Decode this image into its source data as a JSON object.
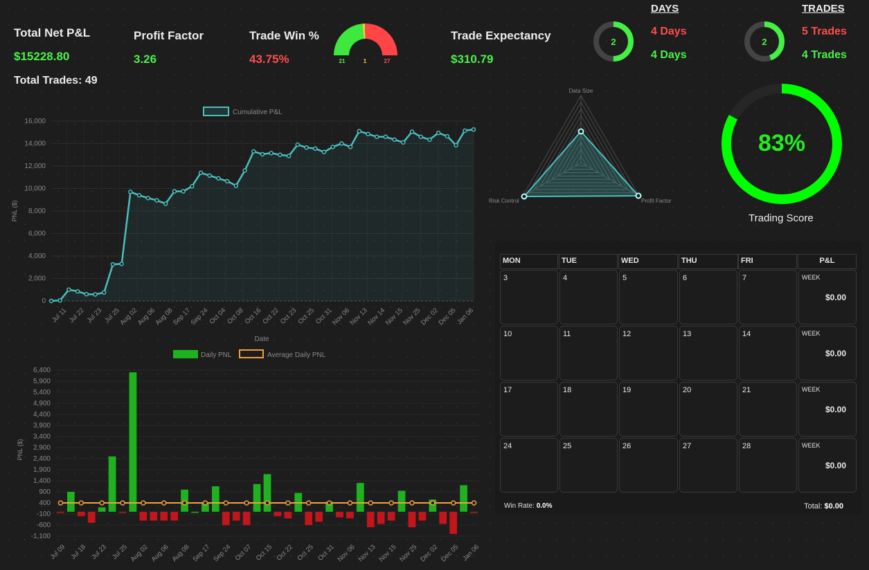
{
  "stats": {
    "net_pnl_label": "Total Net P&L",
    "net_pnl_value": "$15228.80",
    "total_trades": "Total Trades: 49",
    "profit_factor_label": "Profit Factor",
    "profit_factor_value": "3.26",
    "win_pct_label": "Trade Win %",
    "win_pct_value": "43.75%",
    "gauge_win": "21",
    "gauge_even": "1",
    "gauge_loss": "27",
    "expectancy_label": "Trade Expectancy",
    "expectancy_value": "$310.79"
  },
  "days": {
    "title": "DAYS",
    "ring_value": "2",
    "loss": "4 Days",
    "win": "4 Days"
  },
  "trades": {
    "title": "TRADES",
    "ring_value": "2",
    "loss": "5 Trades",
    "win": "4 Trades"
  },
  "score": {
    "value": "83%",
    "label": "Trading Score",
    "fraction": 0.83
  },
  "radar": {
    "labels": [
      "Data Size",
      "Risk Control",
      "Profit Factor"
    ]
  },
  "colors": {
    "green": "#4cf04c",
    "red": "#ff4d4d",
    "line": "#4bbfbf",
    "bar_green": "#1fb11f",
    "bar_red": "#c1161c",
    "avg": "#f0a040",
    "score": "#00ff00"
  },
  "chart_data": [
    {
      "type": "line",
      "legend": "Cumulative P&L",
      "xlabel": "Date",
      "ylabel": "PNL ($)",
      "ylim": [
        0,
        16000
      ],
      "yticks": [
        "0",
        "2,000",
        "4,000",
        "6,000",
        "8,000",
        "10,000",
        "12,000",
        "14,000",
        "16,000"
      ],
      "xticks": [
        "Jul 11",
        "Jul 22",
        "Jul 23",
        "Jul 25",
        "Aug 02",
        "Aug 06",
        "Aug 08",
        "Sep 17",
        "Sep 24",
        "Oct 04",
        "Oct 08",
        "Oct 16",
        "Oct 22",
        "Oct 23",
        "Oct 25",
        "Oct 31",
        "Nov 06",
        "Nov 13",
        "Nov 14",
        "Nov 15",
        "Nov 25",
        "Dec 02",
        "Dec 05",
        "Jan 06"
      ],
      "values": [
        0,
        50,
        1000,
        850,
        600,
        580,
        750,
        3250,
        3300,
        9700,
        9400,
        9150,
        8950,
        8650,
        9750,
        9750,
        10200,
        11400,
        11150,
        10900,
        10650,
        10250,
        11600,
        13300,
        13050,
        13150,
        13000,
        12900,
        13900,
        13650,
        13550,
        13250,
        13700,
        14000,
        13700,
        15100,
        14850,
        14600,
        14600,
        14350,
        14100,
        15050,
        14600,
        14350,
        14950,
        14650,
        13850,
        15150,
        15250
      ]
    },
    {
      "type": "bar",
      "legend": [
        "Daily PNL",
        "Average Daily PNL"
      ],
      "ylabel": "PNL ($)",
      "ylim": [
        -1100,
        6400
      ],
      "yticks": [
        "-1,100",
        "-600",
        "-100",
        "400",
        "900",
        "1,400",
        "1,900",
        "2,400",
        "2,900",
        "3,400",
        "3,900",
        "4,400",
        "4,900",
        "5,400",
        "5,900",
        "6,400"
      ],
      "xticks": [
        "Jul 09",
        "Jul 18",
        "Jul 23",
        "Jul 25",
        "Aug 02",
        "Aug 06",
        "Aug 08",
        "Sep 17",
        "Sep 24",
        "Oct 07",
        "Oct 15",
        "Oct 22",
        "Oct 25",
        "Oct 31",
        "Nov 06",
        "Nov 13",
        "Nov 15",
        "Nov 25",
        "Dec 02",
        "Dec 05",
        "Jan 06"
      ],
      "values": [
        -50,
        900,
        -200,
        -500,
        200,
        2500,
        -50,
        6300,
        -400,
        -400,
        -400,
        -400,
        1000,
        0,
        400,
        1150,
        -600,
        -400,
        -600,
        1250,
        1700,
        -200,
        -300,
        850,
        -600,
        -450,
        450,
        -250,
        -300,
        1300,
        -700,
        -550,
        -400,
        950,
        -700,
        -400,
        550,
        -550,
        -1000,
        1200,
        -50
      ],
      "average": 400
    }
  ],
  "calendar": {
    "headers": [
      "MON",
      "TUE",
      "WED",
      "THU",
      "FRI",
      "P&L"
    ],
    "weeks": [
      {
        "days": [
          "3",
          "4",
          "5",
          "6",
          "7"
        ],
        "label": "WEEK",
        "pnl": "$0.00"
      },
      {
        "days": [
          "10",
          "11",
          "12",
          "13",
          "14"
        ],
        "label": "WEEK",
        "pnl": "$0.00"
      },
      {
        "days": [
          "17",
          "18",
          "19",
          "20",
          "21"
        ],
        "label": "WEEK",
        "pnl": "$0.00"
      },
      {
        "days": [
          "24",
          "25",
          "26",
          "27",
          "28"
        ],
        "label": "WEEK",
        "pnl": "$0.00"
      }
    ],
    "win_rate_label": "Win Rate:",
    "win_rate_value": "0.0%",
    "total_label": "Total:",
    "total_value": "$0.00"
  }
}
